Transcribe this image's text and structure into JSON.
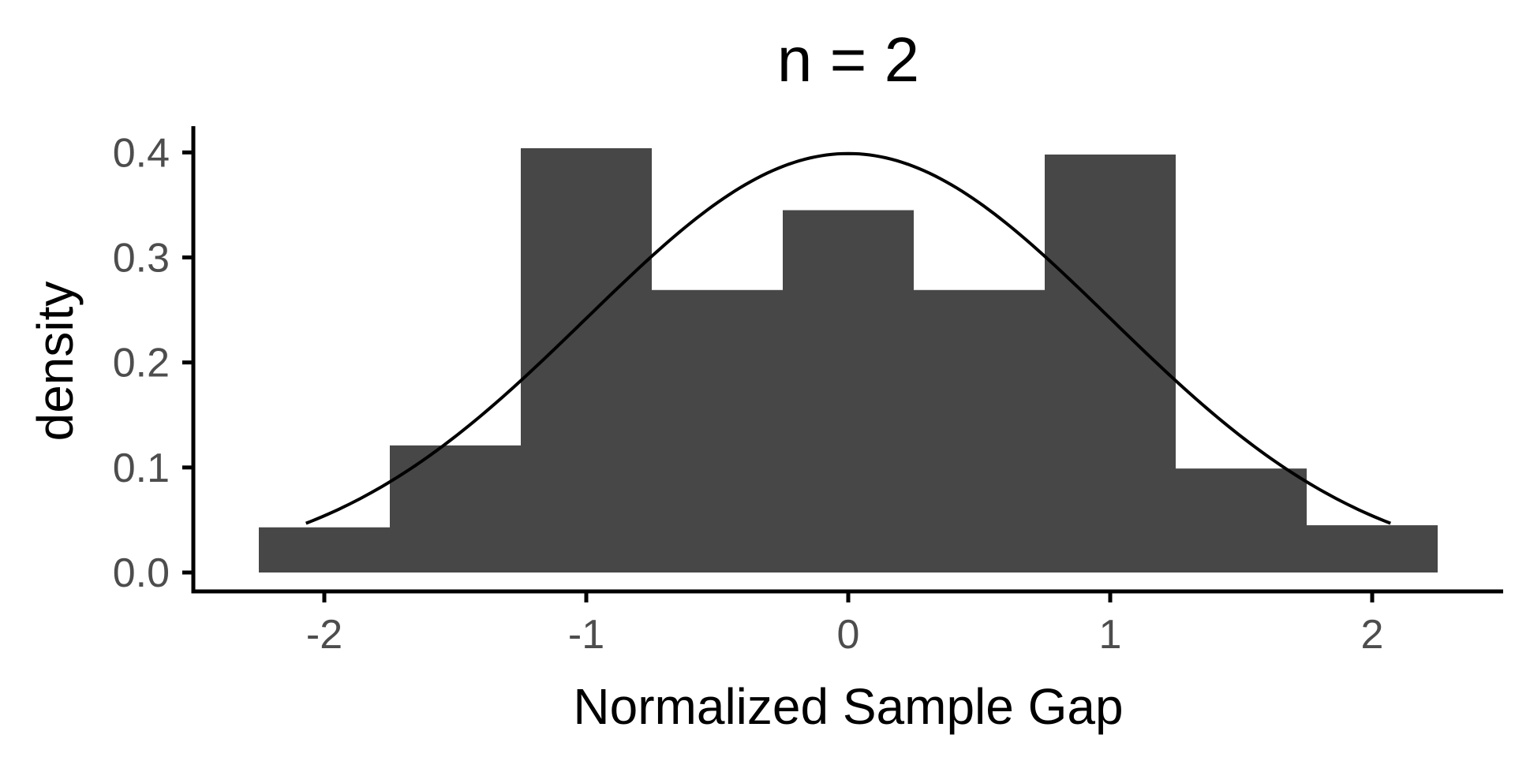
{
  "chart_data": {
    "type": "bar",
    "title": "n = 2",
    "xlabel": "Normalized Sample Gap",
    "ylabel": "density",
    "xlim": [
      -2.5,
      2.5
    ],
    "ylim": [
      -0.018,
      0.425
    ],
    "xticks": [
      -2,
      -1,
      0,
      1,
      2
    ],
    "xtick_labels": [
      "-2",
      "-1",
      "0",
      "1",
      "2"
    ],
    "yticks": [
      0.0,
      0.1,
      0.2,
      0.3,
      0.4
    ],
    "ytick_labels": [
      "0.0",
      "0.1",
      "0.2",
      "0.3",
      "0.4"
    ],
    "grid": false,
    "legend": "none",
    "bin_width": 0.5,
    "bins": [
      {
        "x0": -2.25,
        "x1": -1.75,
        "density": 0.043
      },
      {
        "x0": -1.75,
        "x1": -1.25,
        "density": 0.121
      },
      {
        "x0": -1.25,
        "x1": -0.75,
        "density": 0.404
      },
      {
        "x0": -0.75,
        "x1": -0.25,
        "density": 0.269
      },
      {
        "x0": -0.25,
        "x1": 0.25,
        "density": 0.345
      },
      {
        "x0": 0.25,
        "x1": 0.75,
        "density": 0.269
      },
      {
        "x0": 0.75,
        "x1": 1.25,
        "density": 0.398
      },
      {
        "x0": 1.25,
        "x1": 1.75,
        "density": 0.099
      },
      {
        "x0": 1.75,
        "x1": 2.25,
        "density": 0.045
      }
    ],
    "curve": {
      "type": "normal-density",
      "mean": 0,
      "sd": 1,
      "x_range": [
        -2.07,
        2.07
      ]
    },
    "colors": {
      "bar_fill": "#474747",
      "curve": "#000000",
      "axis": "#000000",
      "tick_label": "#4d4d4d"
    }
  }
}
